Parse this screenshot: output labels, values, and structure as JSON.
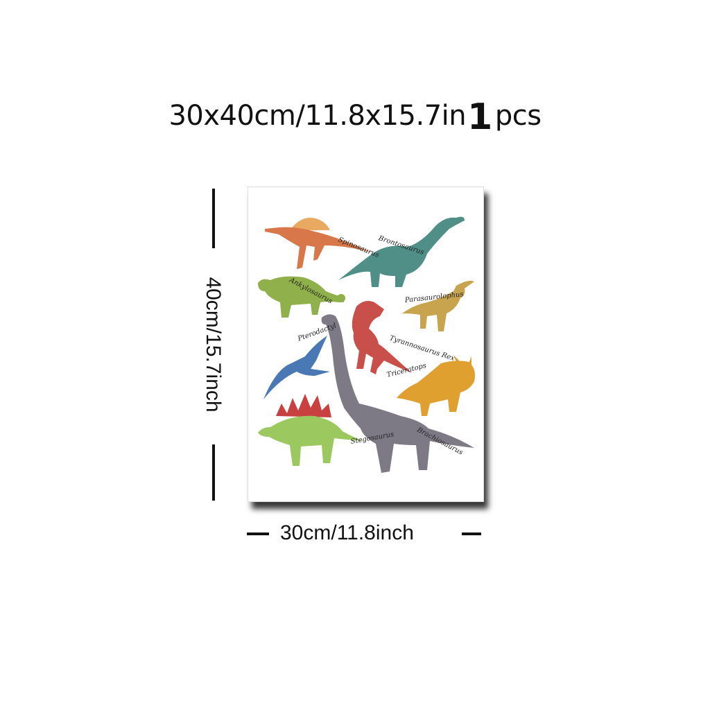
{
  "header": {
    "size_text": "30x40cm/11.8x15.7in",
    "quantity": "1",
    "unit": "pcs"
  },
  "dimensions": {
    "height_label": "40cm/15.7inch",
    "width_label": "30cm/11.8inch"
  },
  "poster": {
    "labels": {
      "spinosaurus": "Spinosaurus",
      "brontosaurus": "Brontosaurus",
      "ankylosaurus": "Ankylosaurus",
      "parasaurolophus": "Parasaurolophus",
      "pterodactyl": "Pterodactyl",
      "tyrannosaurus": "Tyrannosaurus Rex",
      "triceratops": "Triceratops",
      "stegosaurus": "Stegosaurus",
      "brachiosaurus": "Brachiosaurus"
    },
    "colors": {
      "spinosaurus": "#d7774a",
      "brontosaurus": "#4f8f88",
      "ankylosaurus": "#8fb04a",
      "parasaurolophus": "#c8a44f",
      "pterodactyl": "#4a78b5",
      "tyrannosaurus": "#c9504a",
      "triceratops": "#e0a030",
      "stegosaurus": "#9cc860",
      "brachiosaurus": "#7d7a86"
    }
  }
}
